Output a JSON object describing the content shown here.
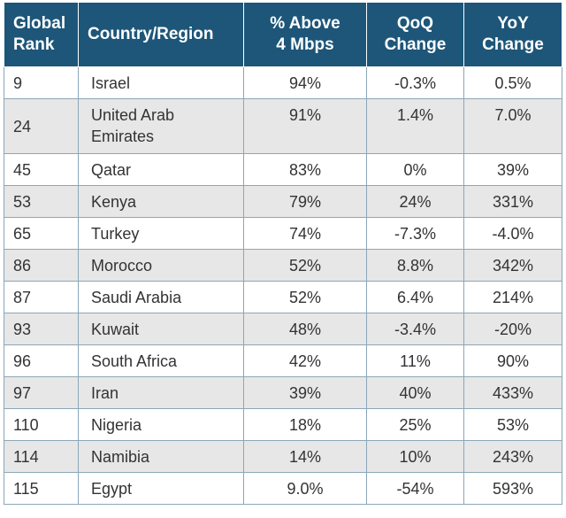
{
  "headers": {
    "rank": [
      "Global",
      "Rank"
    ],
    "country": "Country/Region",
    "pct": [
      "% Above",
      "4 Mbps"
    ],
    "qoq": [
      "QoQ",
      "Change"
    ],
    "yoy": [
      "YoY",
      "Change"
    ]
  },
  "rows": [
    {
      "rank": "9",
      "country": "Israel",
      "pct": "94%",
      "qoq": "-0.3%",
      "yoy": "0.5%"
    },
    {
      "rank": "24",
      "country": "United Arab Emirates",
      "pct": "91%",
      "qoq": "1.4%",
      "yoy": "7.0%"
    },
    {
      "rank": "45",
      "country": "Qatar",
      "pct": "83%",
      "qoq": "0%",
      "yoy": "39%"
    },
    {
      "rank": "53",
      "country": "Kenya",
      "pct": "79%",
      "qoq": "24%",
      "yoy": "331%"
    },
    {
      "rank": "65",
      "country": "Turkey",
      "pct": "74%",
      "qoq": "-7.3%",
      "yoy": "-4.0%"
    },
    {
      "rank": "86",
      "country": "Morocco",
      "pct": "52%",
      "qoq": "8.8%",
      "yoy": "342%"
    },
    {
      "rank": "87",
      "country": "Saudi Arabia",
      "pct": "52%",
      "qoq": "6.4%",
      "yoy": "214%"
    },
    {
      "rank": "93",
      "country": "Kuwait",
      "pct": "48%",
      "qoq": "-3.4%",
      "yoy": "-20%"
    },
    {
      "rank": "96",
      "country": "South Africa",
      "pct": "42%",
      "qoq": "11%",
      "yoy": "90%"
    },
    {
      "rank": "97",
      "country": "Iran",
      "pct": "39%",
      "qoq": "40%",
      "yoy": "433%"
    },
    {
      "rank": "110",
      "country": "Nigeria",
      "pct": "18%",
      "qoq": "25%",
      "yoy": "53%"
    },
    {
      "rank": "114",
      "country": "Namibia",
      "pct": "14%",
      "qoq": "10%",
      "yoy": "243%"
    },
    {
      "rank": "115",
      "country": "Egypt",
      "pct": "9.0%",
      "qoq": "-54%",
      "yoy": "593%"
    }
  ]
}
